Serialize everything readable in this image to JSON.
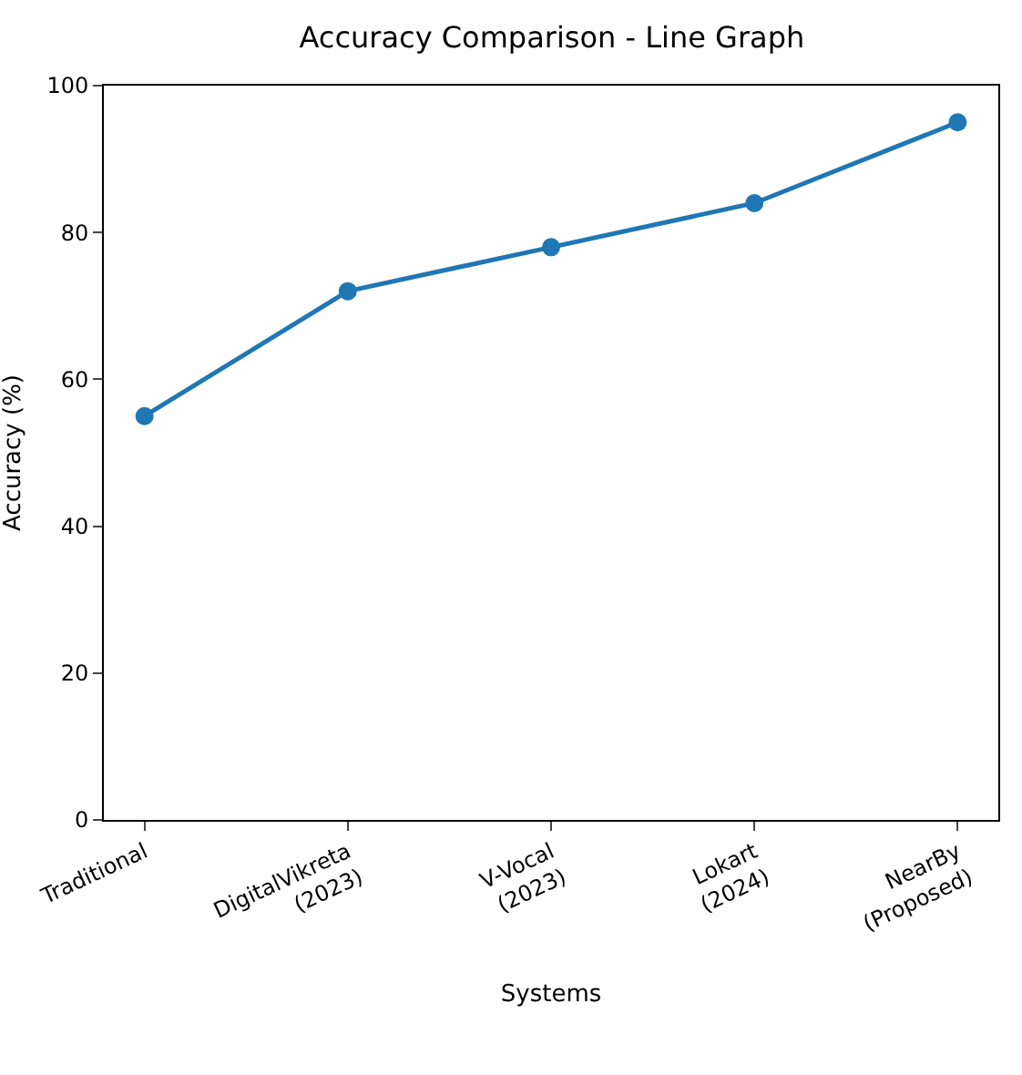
{
  "chart_data": {
    "type": "line",
    "title": "Accuracy Comparison - Line Graph",
    "xlabel": "Systems",
    "ylabel": "Accuracy (%)",
    "categories": [
      "Traditional",
      "DigitalVikreta\n(2023)",
      "V-Vocal\n(2023)",
      "Lokart\n(2024)",
      "NearBy\n(Proposed)"
    ],
    "series": [
      {
        "color": "#1f77b4",
        "values": [
          55,
          72,
          78,
          84,
          95
        ]
      }
    ],
    "ylim": [
      0,
      100
    ],
    "yticks": [
      0,
      20,
      40,
      60,
      80,
      100
    ],
    "grid": false,
    "marker": "circle",
    "line_style": "solid"
  }
}
